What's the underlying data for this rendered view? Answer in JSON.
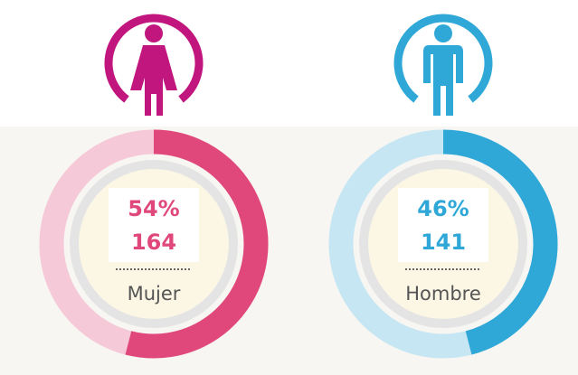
{
  "chart_data": [
    {
      "type": "donut",
      "categories": [
        "Mujer"
      ],
      "values": [
        54
      ],
      "value_labels": [
        "54%"
      ],
      "counts": [
        164
      ],
      "color": "#e0487c",
      "track_color": "#f6c9d8"
    },
    {
      "type": "donut",
      "categories": [
        "Hombre"
      ],
      "values": [
        46
      ],
      "value_labels": [
        "46%"
      ],
      "counts": [
        141
      ],
      "color": "#2fa8d8",
      "track_color": "#c7e6f3"
    }
  ]
}
